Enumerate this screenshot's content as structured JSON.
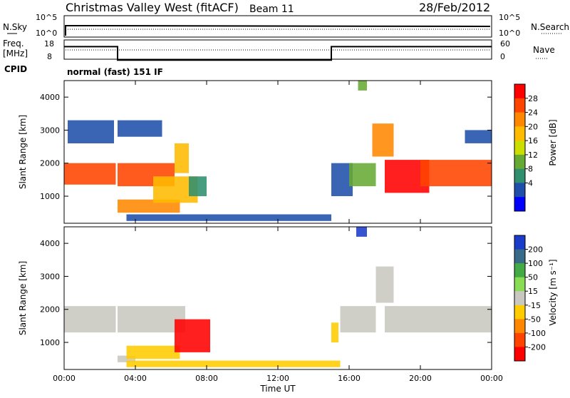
{
  "header": {
    "station": "Christmas Valley West (fitACF)",
    "beam": "Beam 11",
    "date": "28/Feb/2012"
  },
  "strip_labels": {
    "nsky": "N.Sky",
    "nsky_scale_top": "10^5",
    "nsky_scale_bottom": "10^0",
    "nsearch": "N.Search",
    "nsearch_scale_top": "10^5",
    "nsearch_scale_bottom": "10^0",
    "freq": "Freq.",
    "freq_unit": "[MHz]",
    "freq_ticks": [
      "18",
      "8"
    ],
    "nave": "Nave",
    "nave_ticks": [
      "60",
      "0"
    ],
    "cpid": "CPID",
    "cpid_value": "normal (fast) 151 IF"
  },
  "colorbars": {
    "power": {
      "label": "Power [dB]",
      "ticks": [
        "28",
        "24",
        "20",
        "16",
        "12",
        "8",
        "4"
      ],
      "colors": [
        "#ff0000",
        "#ff4400",
        "#ff8800",
        "#ffbb00",
        "#ccdd00",
        "#66aa33",
        "#2f8f6f",
        "#1f4faa",
        "#0000ff"
      ]
    },
    "velocity": {
      "label": "Velocity [m s⁻¹]",
      "ticks": [
        "200",
        "100",
        "50",
        "15",
        "-15",
        "-50",
        "-100",
        "-200"
      ],
      "colors": [
        "#1a3cc8",
        "#3a6a8a",
        "#44aa44",
        "#88dd55",
        "#c8c8c0",
        "#ffcc00",
        "#ff8800",
        "#ff4400",
        "#ff0000"
      ]
    }
  },
  "chart_data": [
    {
      "type": "heatmap",
      "panel": "power",
      "ylabel": "Slant Range [km]",
      "xlabel": "Time UT",
      "xlim": [
        0,
        24
      ],
      "ylim": [
        180,
        4500
      ],
      "xticks": [
        "00:00",
        "04:00",
        "08:00",
        "12:00",
        "16:00",
        "20:00",
        "00:00"
      ],
      "yticks": [
        "1000",
        "2000",
        "3000",
        "4000"
      ],
      "colorbar_range_dB": [
        0,
        30
      ],
      "regions": [
        {
          "t0": 0.0,
          "t1": 2.9,
          "r0": 1350,
          "r1": 2000,
          "value": 26
        },
        {
          "t0": 3.0,
          "t1": 6.2,
          "r0": 1300,
          "r1": 2000,
          "value": 25
        },
        {
          "t0": 6.2,
          "t1": 7.0,
          "r0": 1700,
          "r1": 2600,
          "value": 18
        },
        {
          "t0": 0.2,
          "t1": 2.8,
          "r0": 2600,
          "r1": 3300,
          "value": 6
        },
        {
          "t0": 3.0,
          "t1": 5.5,
          "r0": 2800,
          "r1": 3300,
          "value": 6
        },
        {
          "t0": 3.0,
          "t1": 6.5,
          "r0": 500,
          "r1": 900,
          "value": 20
        },
        {
          "t0": 5.0,
          "t1": 7.5,
          "r0": 800,
          "r1": 1600,
          "value": 18
        },
        {
          "t0": 7.0,
          "t1": 8.0,
          "r0": 1000,
          "r1": 1600,
          "value": 8
        },
        {
          "t0": 3.5,
          "t1": 15.0,
          "r0": 250,
          "r1": 450,
          "value": 6
        },
        {
          "t0": 15.0,
          "t1": 16.2,
          "r0": 1000,
          "r1": 2000,
          "value": 6
        },
        {
          "t0": 16.0,
          "t1": 17.5,
          "r0": 1300,
          "r1": 2000,
          "value": 10
        },
        {
          "t0": 16.5,
          "t1": 17.0,
          "r0": 4200,
          "r1": 4500,
          "value": 12
        },
        {
          "t0": 17.3,
          "t1": 18.5,
          "r0": 2200,
          "r1": 3200,
          "value": 20
        },
        {
          "t0": 18.0,
          "t1": 20.5,
          "r0": 1100,
          "r1": 2100,
          "value": 27
        },
        {
          "t0": 20.0,
          "t1": 24.0,
          "r0": 1300,
          "r1": 2100,
          "value": 24
        },
        {
          "t0": 22.5,
          "t1": 24.0,
          "r0": 2600,
          "r1": 3000,
          "value": 6
        }
      ]
    },
    {
      "type": "heatmap",
      "panel": "velocity",
      "ylabel": "Slant Range [km]",
      "xlabel": "Time UT",
      "xlim": [
        0,
        24
      ],
      "ylim": [
        180,
        4500
      ],
      "xticks": [
        "00:00",
        "04:00",
        "08:00",
        "12:00",
        "16:00",
        "20:00",
        "00:00"
      ],
      "yticks": [
        "1000",
        "2000",
        "3000",
        "4000"
      ],
      "colorbar_range_ms": [
        -250,
        250
      ],
      "regions": [
        {
          "t0": 0.0,
          "t1": 2.9,
          "r0": 1300,
          "r1": 2100,
          "value": 0
        },
        {
          "t0": 3.0,
          "t1": 6.8,
          "r0": 1300,
          "r1": 2100,
          "value": 0
        },
        {
          "t0": 3.0,
          "t1": 4.0,
          "r0": 400,
          "r1": 600,
          "value": 0
        },
        {
          "t0": 3.5,
          "t1": 6.5,
          "r0": 500,
          "r1": 900,
          "value": -60
        },
        {
          "t0": 6.2,
          "t1": 8.2,
          "r0": 700,
          "r1": 1700,
          "value": -220
        },
        {
          "t0": 3.5,
          "t1": 15.5,
          "r0": 250,
          "r1": 450,
          "value": -40
        },
        {
          "t0": 15.0,
          "t1": 15.4,
          "r0": 1000,
          "r1": 1600,
          "value": -60
        },
        {
          "t0": 15.5,
          "t1": 17.5,
          "r0": 1300,
          "r1": 2100,
          "value": 0
        },
        {
          "t0": 16.4,
          "t1": 17.0,
          "r0": 4200,
          "r1": 4500,
          "value": 220
        },
        {
          "t0": 17.5,
          "t1": 18.5,
          "r0": 2200,
          "r1": 3300,
          "value": 0
        },
        {
          "t0": 18.0,
          "t1": 24.0,
          "r0": 1300,
          "r1": 2100,
          "value": 0
        }
      ]
    }
  ],
  "strip_data": {
    "freq_MHz": [
      {
        "t0": 0.0,
        "t1": 3.0,
        "value": 16
      },
      {
        "t0": 3.0,
        "t1": 15.0,
        "value": 9
      },
      {
        "t0": 15.0,
        "t1": 24.0,
        "value": 16
      }
    ],
    "nave_dotted_level": 20
  }
}
